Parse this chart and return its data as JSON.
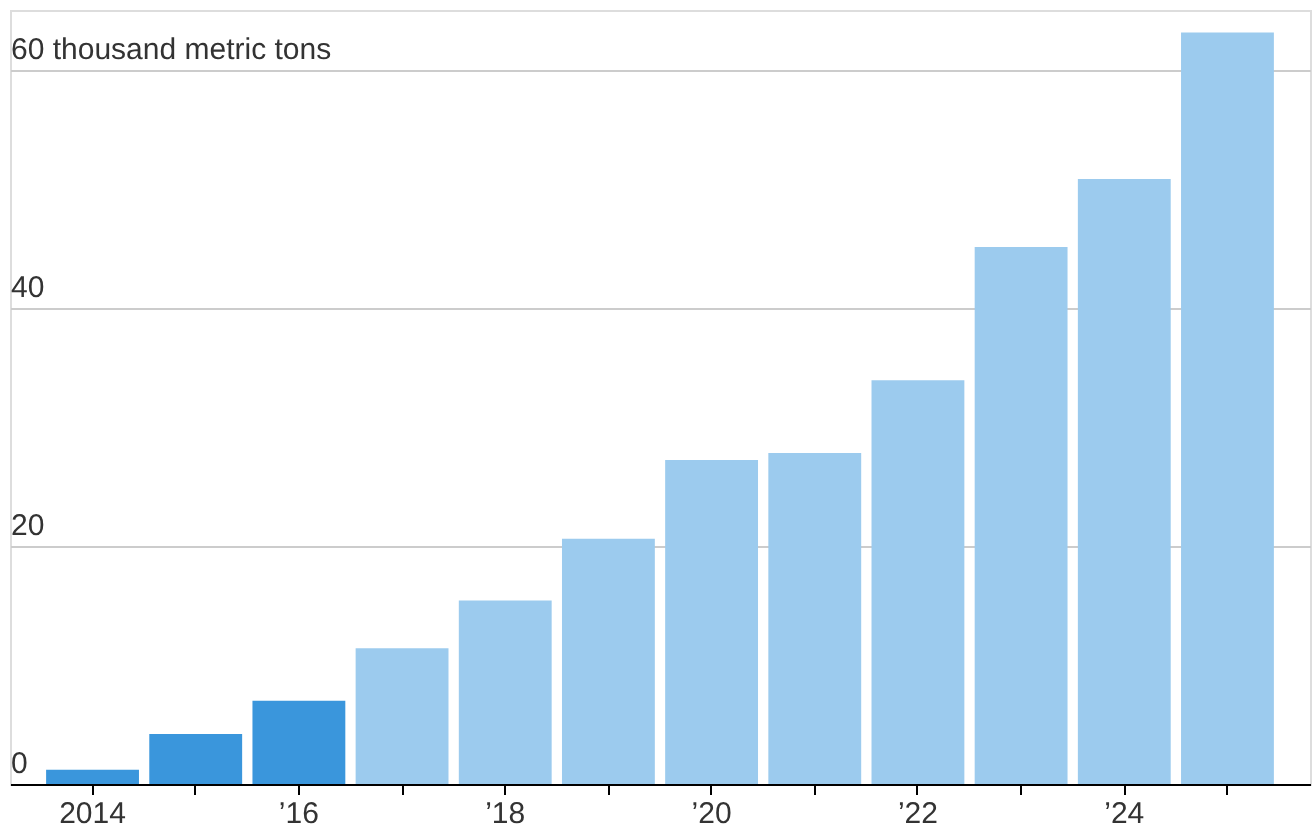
{
  "chart_data": {
    "type": "bar",
    "categories": [
      "2014",
      null,
      "’16",
      null,
      "’18",
      null,
      "’20",
      null,
      "’22",
      null,
      "’24",
      null
    ],
    "values": [
      1.2,
      4.2,
      7.0,
      11.4,
      15.4,
      20.6,
      27.2,
      27.8,
      33.9,
      45.1,
      50.8,
      63.1
    ],
    "colors": [
      "#3a96dc",
      "#3a96dc",
      "#3a96dc",
      "#9ccbee",
      "#9ccbee",
      "#9ccbee",
      "#9ccbee",
      "#9ccbee",
      "#9ccbee",
      "#9ccbee",
      "#9ccbee",
      "#9ccbee"
    ],
    "ylim": [
      0,
      65
    ],
    "yticks": [
      0,
      20,
      40,
      {
        "value": 60,
        "label": "60 thousand metric tons"
      }
    ],
    "grid": "y"
  }
}
